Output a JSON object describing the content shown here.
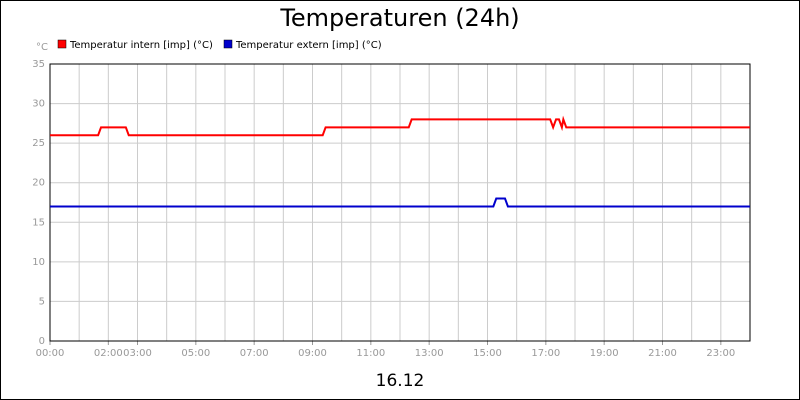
{
  "chart_data": {
    "type": "line",
    "title": "Temperaturen (24h)",
    "subtitle": "16.12",
    "y_unit": "°C",
    "xlim": [
      0,
      24
    ],
    "xticks": [
      {
        "value": 0,
        "label": "00:00"
      },
      {
        "value": 2,
        "label": "02:00"
      },
      {
        "value": 3,
        "label": "03:00"
      },
      {
        "value": 5,
        "label": "05:00"
      },
      {
        "value": 7,
        "label": "07:00"
      },
      {
        "value": 9,
        "label": "09:00"
      },
      {
        "value": 11,
        "label": "11:00"
      },
      {
        "value": 13,
        "label": "13:00"
      },
      {
        "value": 15,
        "label": "15:00"
      },
      {
        "value": 17,
        "label": "17:00"
      },
      {
        "value": 19,
        "label": "19:00"
      },
      {
        "value": 21,
        "label": "21:00"
      },
      {
        "value": 23,
        "label": "23:00"
      }
    ],
    "xgrid_interval": 1,
    "ylim": [
      0,
      35
    ],
    "yticks": [
      0,
      5,
      10,
      15,
      20,
      25,
      30,
      35
    ],
    "grid": true,
    "series": [
      {
        "name": "Temperatur intern [imp] (°C)",
        "color": "#ff0000",
        "x": [
          0,
          1.65,
          1.75,
          2.6,
          2.7,
          9.35,
          9.45,
          12.3,
          12.4,
          17.15,
          17.25,
          17.35,
          17.45,
          17.55,
          17.6,
          17.7,
          24
        ],
        "values": [
          26,
          26,
          27,
          27,
          26,
          26,
          27,
          27,
          28,
          28,
          27,
          28,
          28,
          27,
          28,
          27,
          27
        ]
      },
      {
        "name": "Temperatur extern [imp] (°C)",
        "color": "#0000cc",
        "x": [
          0,
          15.2,
          15.3,
          15.6,
          15.7,
          24
        ],
        "values": [
          17,
          17,
          18,
          18,
          17,
          17
        ]
      }
    ]
  }
}
